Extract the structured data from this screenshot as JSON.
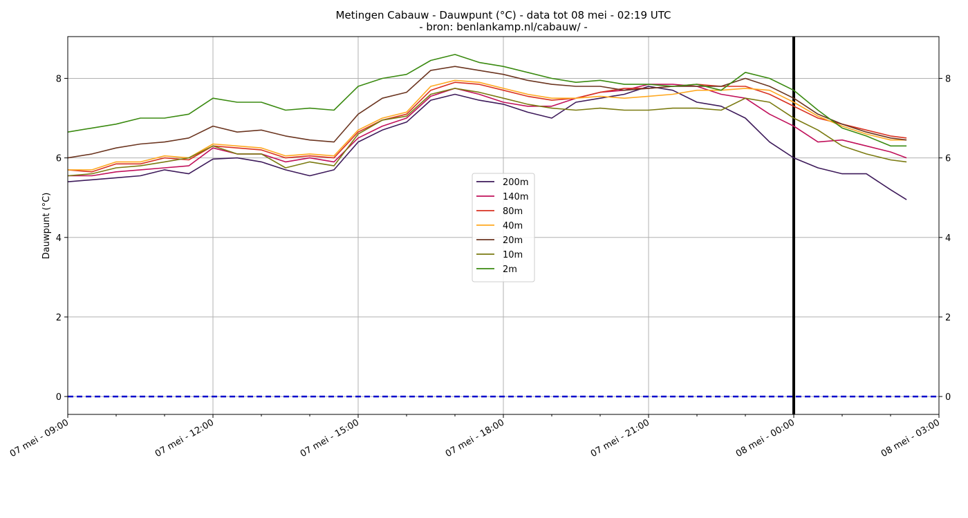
{
  "chart_data": {
    "type": "line",
    "title": "Metingen Cabauw - Dauwpunt (°C) - data tot 08 mei - 02:19 UTC",
    "subtitle": "- bron: benlankamp.nl/cabauw/ -",
    "ylabel": "Dauwpunt (°C)",
    "xlabel": "",
    "x_unit": "hours since 07 mei - 09:00 UTC",
    "xlim": [
      0,
      18
    ],
    "ylim": [
      -0.45,
      9.05
    ],
    "x_ticks": [
      0,
      3,
      6,
      9,
      12,
      15,
      18
    ],
    "x_tick_labels": [
      "07 mei - 09:00",
      "07 mei - 12:00",
      "07 mei - 15:00",
      "07 mei - 18:00",
      "07 mei - 21:00",
      "08 mei - 00:00",
      "08 mei - 03:00"
    ],
    "y_ticks": [
      0,
      2,
      4,
      6,
      8
    ],
    "y_tick_labels": [
      "0",
      "2",
      "4",
      "6",
      "8"
    ],
    "grid": true,
    "legend_position": "center",
    "reference_lines": {
      "zero_line": {
        "y": 0,
        "color": "#0000cc",
        "style": "dashed"
      },
      "midnight_line": {
        "x": 15,
        "color": "#000000",
        "style": "solid"
      }
    },
    "series": [
      {
        "name": "200m",
        "color": "#3d1a5a",
        "points": [
          [
            0,
            5.4
          ],
          [
            0.5,
            5.45
          ],
          [
            1,
            5.5
          ],
          [
            1.5,
            5.55
          ],
          [
            2,
            5.7
          ],
          [
            2.5,
            5.6
          ],
          [
            3,
            5.97
          ],
          [
            3.5,
            6.0
          ],
          [
            4,
            5.9
          ],
          [
            4.5,
            5.7
          ],
          [
            5,
            5.55
          ],
          [
            5.5,
            5.7
          ],
          [
            6,
            6.4
          ],
          [
            6.5,
            6.7
          ],
          [
            7,
            6.9
          ],
          [
            7.5,
            7.45
          ],
          [
            8,
            7.6
          ],
          [
            8.5,
            7.45
          ],
          [
            9,
            7.35
          ],
          [
            9.5,
            7.15
          ],
          [
            10,
            7.0
          ],
          [
            10.5,
            7.4
          ],
          [
            11,
            7.5
          ],
          [
            11.5,
            7.6
          ],
          [
            12,
            7.8
          ],
          [
            12.5,
            7.7
          ],
          [
            13,
            7.4
          ],
          [
            13.5,
            7.3
          ],
          [
            14,
            7.0
          ],
          [
            14.5,
            6.4
          ],
          [
            15,
            6.0
          ],
          [
            15.5,
            5.75
          ],
          [
            16,
            5.6
          ],
          [
            16.5,
            5.6
          ],
          [
            17,
            5.2
          ],
          [
            17.33,
            4.95
          ]
        ]
      },
      {
        "name": "140m",
        "color": "#c0105a",
        "points": [
          [
            0,
            5.55
          ],
          [
            0.5,
            5.55
          ],
          [
            1,
            5.65
          ],
          [
            1.5,
            5.7
          ],
          [
            2,
            5.75
          ],
          [
            2.5,
            5.8
          ],
          [
            3,
            6.25
          ],
          [
            3.5,
            6.1
          ],
          [
            4,
            6.1
          ],
          [
            4.5,
            5.9
          ],
          [
            5,
            6.0
          ],
          [
            5.5,
            5.9
          ],
          [
            6,
            6.5
          ],
          [
            6.5,
            6.8
          ],
          [
            7,
            7.0
          ],
          [
            7.5,
            7.55
          ],
          [
            8,
            7.75
          ],
          [
            8.5,
            7.6
          ],
          [
            9,
            7.4
          ],
          [
            9.5,
            7.3
          ],
          [
            10,
            7.3
          ],
          [
            10.5,
            7.5
          ],
          [
            11,
            7.65
          ],
          [
            11.5,
            7.7
          ],
          [
            12,
            7.85
          ],
          [
            12.5,
            7.85
          ],
          [
            13,
            7.8
          ],
          [
            13.5,
            7.6
          ],
          [
            14,
            7.5
          ],
          [
            14.5,
            7.1
          ],
          [
            15,
            6.8
          ],
          [
            15.5,
            6.4
          ],
          [
            16,
            6.45
          ],
          [
            16.5,
            6.3
          ],
          [
            17,
            6.15
          ],
          [
            17.33,
            6.0
          ]
        ]
      },
      {
        "name": "80m",
        "color": "#d83020",
        "points": [
          [
            0,
            5.7
          ],
          [
            0.5,
            5.65
          ],
          [
            1,
            5.85
          ],
          [
            1.5,
            5.85
          ],
          [
            2,
            6.0
          ],
          [
            2.5,
            5.95
          ],
          [
            3,
            6.3
          ],
          [
            3.5,
            6.25
          ],
          [
            4,
            6.2
          ],
          [
            4.5,
            6.0
          ],
          [
            5,
            6.05
          ],
          [
            5.5,
            6.0
          ],
          [
            6,
            6.65
          ],
          [
            6.5,
            6.95
          ],
          [
            7,
            7.1
          ],
          [
            7.5,
            7.7
          ],
          [
            8,
            7.9
          ],
          [
            8.5,
            7.85
          ],
          [
            9,
            7.7
          ],
          [
            9.5,
            7.55
          ],
          [
            10,
            7.45
          ],
          [
            10.5,
            7.5
          ],
          [
            11,
            7.65
          ],
          [
            11.5,
            7.75
          ],
          [
            12,
            7.75
          ],
          [
            12.5,
            7.8
          ],
          [
            13,
            7.85
          ],
          [
            13.5,
            7.8
          ],
          [
            14,
            7.8
          ],
          [
            14.5,
            7.6
          ],
          [
            15,
            7.3
          ],
          [
            15.5,
            7.0
          ],
          [
            16,
            6.85
          ],
          [
            16.5,
            6.7
          ],
          [
            17,
            6.55
          ],
          [
            17.33,
            6.5
          ]
        ]
      },
      {
        "name": "40m",
        "color": "#ffa820",
        "points": [
          [
            0,
            5.7
          ],
          [
            0.5,
            5.7
          ],
          [
            1,
            5.9
          ],
          [
            1.5,
            5.9
          ],
          [
            2,
            6.05
          ],
          [
            2.5,
            6.0
          ],
          [
            3,
            6.35
          ],
          [
            3.5,
            6.3
          ],
          [
            4,
            6.25
          ],
          [
            4.5,
            6.05
          ],
          [
            5,
            6.1
          ],
          [
            5.5,
            6.05
          ],
          [
            6,
            6.7
          ],
          [
            6.5,
            7.0
          ],
          [
            7,
            7.15
          ],
          [
            7.5,
            7.8
          ],
          [
            8,
            7.95
          ],
          [
            8.5,
            7.9
          ],
          [
            9,
            7.75
          ],
          [
            9.5,
            7.6
          ],
          [
            10,
            7.5
          ],
          [
            10.5,
            7.5
          ],
          [
            11,
            7.55
          ],
          [
            11.5,
            7.5
          ],
          [
            12,
            7.55
          ],
          [
            12.5,
            7.6
          ],
          [
            13,
            7.7
          ],
          [
            13.5,
            7.7
          ],
          [
            14,
            7.75
          ],
          [
            14.5,
            7.7
          ],
          [
            15,
            7.4
          ],
          [
            15.5,
            7.05
          ],
          [
            16,
            6.8
          ],
          [
            16.5,
            6.6
          ],
          [
            17,
            6.45
          ],
          [
            17.33,
            6.45
          ]
        ]
      },
      {
        "name": "20m",
        "color": "#6b3520",
        "points": [
          [
            0,
            6.0
          ],
          [
            0.5,
            6.1
          ],
          [
            1,
            6.25
          ],
          [
            1.5,
            6.35
          ],
          [
            2,
            6.4
          ],
          [
            2.5,
            6.5
          ],
          [
            3,
            6.8
          ],
          [
            3.5,
            6.65
          ],
          [
            4,
            6.7
          ],
          [
            4.5,
            6.55
          ],
          [
            5,
            6.45
          ],
          [
            5.5,
            6.4
          ],
          [
            6,
            7.1
          ],
          [
            6.5,
            7.5
          ],
          [
            7,
            7.65
          ],
          [
            7.5,
            8.2
          ],
          [
            8,
            8.3
          ],
          [
            8.5,
            8.2
          ],
          [
            9,
            8.1
          ],
          [
            9.5,
            7.95
          ],
          [
            10,
            7.85
          ],
          [
            10.5,
            7.8
          ],
          [
            11,
            7.8
          ],
          [
            11.5,
            7.7
          ],
          [
            12,
            7.75
          ],
          [
            12.5,
            7.8
          ],
          [
            13,
            7.8
          ],
          [
            13.5,
            7.8
          ],
          [
            14,
            8.0
          ],
          [
            14.5,
            7.8
          ],
          [
            15,
            7.5
          ],
          [
            15.5,
            7.1
          ],
          [
            16,
            6.85
          ],
          [
            16.5,
            6.65
          ],
          [
            17,
            6.5
          ],
          [
            17.33,
            6.45
          ]
        ]
      },
      {
        "name": "10m",
        "color": "#7a7a10",
        "points": [
          [
            0,
            5.55
          ],
          [
            0.5,
            5.6
          ],
          [
            1,
            5.75
          ],
          [
            1.5,
            5.8
          ],
          [
            2,
            5.9
          ],
          [
            2.5,
            6.0
          ],
          [
            3,
            6.3
          ],
          [
            3.5,
            6.1
          ],
          [
            4,
            6.1
          ],
          [
            4.5,
            5.75
          ],
          [
            5,
            5.9
          ],
          [
            5.5,
            5.8
          ],
          [
            6,
            6.6
          ],
          [
            6.5,
            6.95
          ],
          [
            7,
            7.05
          ],
          [
            7.5,
            7.6
          ],
          [
            8,
            7.75
          ],
          [
            8.5,
            7.65
          ],
          [
            9,
            7.5
          ],
          [
            9.5,
            7.35
          ],
          [
            10,
            7.25
          ],
          [
            10.5,
            7.2
          ],
          [
            11,
            7.25
          ],
          [
            11.5,
            7.2
          ],
          [
            12,
            7.2
          ],
          [
            12.5,
            7.25
          ],
          [
            13,
            7.25
          ],
          [
            13.5,
            7.2
          ],
          [
            14,
            7.5
          ],
          [
            14.5,
            7.4
          ],
          [
            15,
            7.0
          ],
          [
            15.5,
            6.7
          ],
          [
            16,
            6.3
          ],
          [
            16.5,
            6.1
          ],
          [
            17,
            5.95
          ],
          [
            17.33,
            5.9
          ]
        ]
      },
      {
        "name": "2m",
        "color": "#3a8a10",
        "points": [
          [
            0,
            6.65
          ],
          [
            0.5,
            6.75
          ],
          [
            1,
            6.85
          ],
          [
            1.5,
            7.0
          ],
          [
            2,
            7.0
          ],
          [
            2.5,
            7.1
          ],
          [
            3,
            7.5
          ],
          [
            3.5,
            7.4
          ],
          [
            4,
            7.4
          ],
          [
            4.5,
            7.2
          ],
          [
            5,
            7.25
          ],
          [
            5.5,
            7.2
          ],
          [
            6,
            7.8
          ],
          [
            6.5,
            8.0
          ],
          [
            7,
            8.1
          ],
          [
            7.5,
            8.45
          ],
          [
            8,
            8.6
          ],
          [
            8.5,
            8.4
          ],
          [
            9,
            8.3
          ],
          [
            9.5,
            8.15
          ],
          [
            10,
            8.0
          ],
          [
            10.5,
            7.9
          ],
          [
            11,
            7.95
          ],
          [
            11.5,
            7.85
          ],
          [
            12,
            7.85
          ],
          [
            12.5,
            7.8
          ],
          [
            13,
            7.85
          ],
          [
            13.5,
            7.7
          ],
          [
            14,
            8.15
          ],
          [
            14.5,
            8.0
          ],
          [
            15,
            7.7
          ],
          [
            15.5,
            7.2
          ],
          [
            16,
            6.75
          ],
          [
            16.5,
            6.55
          ],
          [
            17,
            6.3
          ],
          [
            17.33,
            6.3
          ]
        ]
      }
    ]
  }
}
